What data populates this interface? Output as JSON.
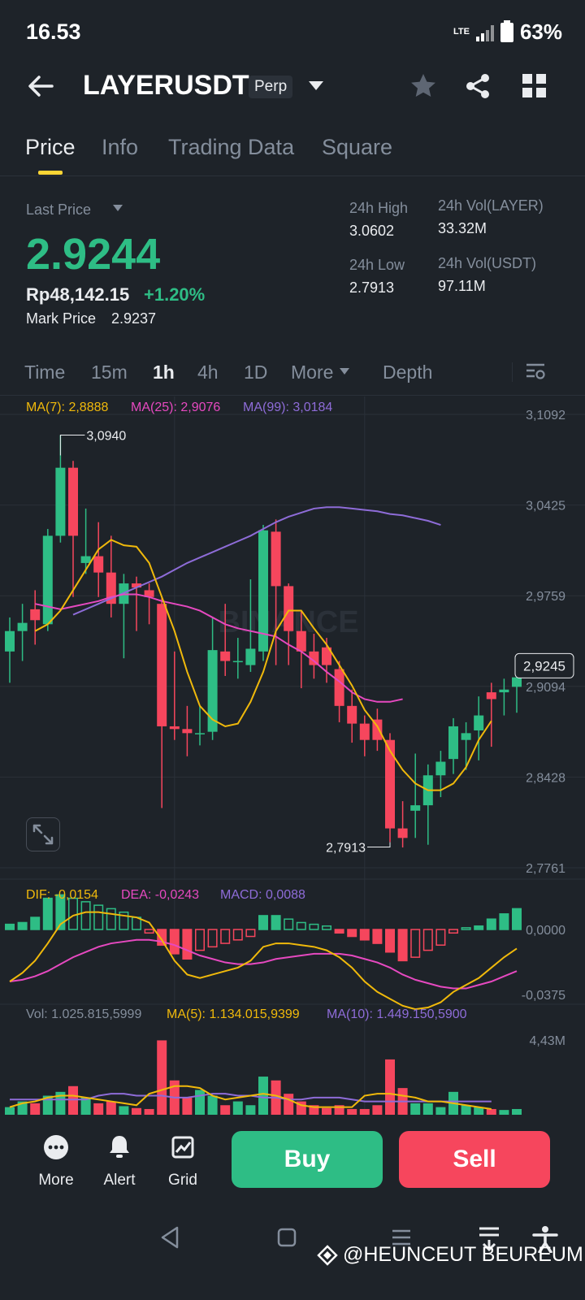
{
  "status_bar": {
    "time": "16.53",
    "network": "LTE",
    "battery": "63%"
  },
  "header": {
    "pair": "LAYERUSDT",
    "contract_badge": "Perp"
  },
  "tabs": [
    {
      "label": "Price",
      "active": true
    },
    {
      "label": "Info",
      "active": false
    },
    {
      "label": "Trading Data",
      "active": false
    },
    {
      "label": "Square",
      "active": false
    }
  ],
  "ticker": {
    "last_price_label": "Last Price",
    "last_price": "2.9244",
    "fiat_price": "Rp48,142.15",
    "change": "+1.20%",
    "mark_price_label": "Mark Price",
    "mark_price": "2.9237",
    "high_label": "24h High",
    "high": "3.0602",
    "low_label": "24h Low",
    "low": "2.7913",
    "vol_base_label": "24h Vol(LAYER)",
    "vol_base": "33.32M",
    "vol_quote_label": "24h Vol(USDT)",
    "vol_quote": "97.11M"
  },
  "intervals": [
    {
      "label": "Time",
      "active": false
    },
    {
      "label": "15m",
      "active": false
    },
    {
      "label": "1h",
      "active": true
    },
    {
      "label": "4h",
      "active": false
    },
    {
      "label": "1D",
      "active": false
    },
    {
      "label": "More",
      "active": false
    },
    {
      "label": "Depth",
      "active": false
    }
  ],
  "indicators": {
    "ma7": "MA(7): 2,8888",
    "ma25": "MA(25): 2,9076",
    "ma99": "MA(99): 3,0184",
    "dif": "DIF: -0,0154",
    "dea": "DEA: -0,0243",
    "macd": "MACD: 0,0088",
    "vol": "Vol: 1.025.815,5999",
    "vol_ma5": "MA(5): 1.134.015,9399",
    "vol_ma10": "MA(10): 1.449.150,5900"
  },
  "colors": {
    "up": "#2ebd85",
    "down": "#f6465d",
    "ma7": "#f0b90b",
    "ma25": "#e649c0",
    "ma99": "#8e6cd8",
    "accent": "#fcd535",
    "background": "#1e2329"
  },
  "chart_data": {
    "type": "candlestick",
    "watermark": "BINANCE",
    "price_axis": [
      "3,1092",
      "3,0425",
      "2,9759",
      "2,9094",
      "2,8428",
      "2,7761"
    ],
    "ylim": [
      2.7761,
      3.1092
    ],
    "current_price_tag": "2,9245",
    "current_price": 2.9245,
    "high_annotation": {
      "label": "3,0940",
      "value": 3.094
    },
    "low_annotation": {
      "label": "2,7913",
      "value": 2.7913
    },
    "candles": [
      [
        2.935,
        2.95,
        2.96,
        2.912
      ],
      [
        2.95,
        2.956,
        2.97,
        2.928
      ],
      [
        2.966,
        2.958,
        2.98,
        2.94
      ],
      [
        2.955,
        3.02,
        3.025,
        2.95
      ],
      [
        3.02,
        3.07,
        3.094,
        3.015
      ],
      [
        3.07,
        3.02,
        3.075,
        2.975
      ],
      [
        3.0,
        3.005,
        3.04,
        2.992
      ],
      [
        3.005,
        2.993,
        3.03,
        2.975
      ],
      [
        2.993,
        2.97,
        3.02,
        2.96
      ],
      [
        2.97,
        2.985,
        2.992,
        2.93
      ],
      [
        2.985,
        2.982,
        2.99,
        2.95
      ],
      [
        2.98,
        2.975,
        2.985,
        2.955
      ],
      [
        2.97,
        2.88,
        2.975,
        2.82
      ],
      [
        2.88,
        2.878,
        2.935,
        2.87
      ],
      [
        2.878,
        2.875,
        2.895,
        2.858
      ],
      [
        2.875,
        2.875,
        2.895,
        2.866
      ],
      [
        2.876,
        2.936,
        2.96,
        2.87
      ],
      [
        2.935,
        2.928,
        2.97,
        2.917
      ],
      [
        2.928,
        2.928,
        2.945,
        2.915
      ],
      [
        2.925,
        2.937,
        2.988,
        2.92
      ],
      [
        2.935,
        3.024,
        3.028,
        2.928
      ],
      [
        3.023,
        2.983,
        3.032,
        2.925
      ],
      [
        2.983,
        2.95,
        2.985,
        2.925
      ],
      [
        2.95,
        2.935,
        2.965,
        2.908
      ],
      [
        2.935,
        2.925,
        2.948,
        2.915
      ],
      [
        2.938,
        2.925,
        2.945,
        2.912
      ],
      [
        2.922,
        2.895,
        2.928,
        2.883
      ],
      [
        2.895,
        2.882,
        2.907,
        2.868
      ],
      [
        2.882,
        2.87,
        2.888,
        2.858
      ],
      [
        2.885,
        2.87,
        2.893,
        2.862
      ],
      [
        2.87,
        2.805,
        2.875,
        2.795
      ],
      [
        2.805,
        2.798,
        2.825,
        2.791
      ],
      [
        2.818,
        2.822,
        2.86,
        2.798
      ],
      [
        2.822,
        2.844,
        2.852,
        2.793
      ],
      [
        2.844,
        2.854,
        2.862,
        2.828
      ],
      [
        2.856,
        2.88,
        2.886,
        2.845
      ],
      [
        2.87,
        2.875,
        2.883,
        2.848
      ],
      [
        2.877,
        2.888,
        2.902,
        2.855
      ],
      [
        2.905,
        2.9,
        2.912,
        2.865
      ],
      [
        2.905,
        2.907,
        2.915,
        2.888
      ],
      [
        2.909,
        2.916,
        2.93,
        2.89
      ]
    ],
    "ma7_series": [
      2.95,
      2.955,
      2.965,
      2.98,
      2.995,
      3.01,
      3.017,
      3.013,
      3.012,
      3.0,
      2.975,
      2.95,
      2.92,
      2.895,
      2.885,
      2.88,
      2.882,
      2.898,
      2.92,
      2.95,
      2.965,
      2.965,
      2.952,
      2.94,
      2.925,
      2.91,
      2.892,
      2.88,
      2.862,
      2.848,
      2.838,
      2.833,
      2.833,
      2.838,
      2.85,
      2.87,
      2.884
    ],
    "ma7_start": 2,
    "ma25_series": [
      2.97,
      2.968,
      2.966,
      2.968,
      2.97,
      2.972,
      2.975,
      2.977,
      2.977,
      2.975,
      2.972,
      2.97,
      2.968,
      2.965,
      2.96,
      2.955,
      2.952,
      2.95,
      2.948,
      2.946,
      2.94,
      2.935,
      2.928,
      2.92,
      2.913,
      2.905,
      2.9,
      2.898,
      2.898,
      2.9
    ],
    "ma25_start": 2,
    "ma99_series": [
      2.962,
      2.966,
      2.97,
      2.974,
      2.978,
      2.982,
      2.986,
      2.99,
      2.995,
      3.0,
      3.004,
      3.008,
      3.012,
      3.016,
      3.02,
      3.025,
      3.03,
      3.034,
      3.037,
      3.04,
      3.041,
      3.041,
      3.04,
      3.039,
      3.038,
      3.036,
      3.035,
      3.033,
      3.031,
      3.028
    ],
    "ma99_start": 5,
    "macd_axis": [
      "0,0000",
      "-0,0375"
    ],
    "macd_hist": [
      0.003,
      0.004,
      0.007,
      0.018,
      0.02,
      0.018,
      0.016,
      0.014,
      0.012,
      0.01,
      0.007,
      -0.002,
      -0.009,
      -0.014,
      -0.017,
      -0.012,
      -0.01,
      -0.008,
      -0.006,
      -0.004,
      0.008,
      0.008,
      0.006,
      0.004,
      0.003,
      0.002,
      -0.002,
      -0.004,
      -0.006,
      -0.008,
      -0.013,
      -0.018,
      -0.016,
      -0.012,
      -0.009,
      -0.002,
      0.001,
      0.002,
      0.006,
      0.009,
      0.012
    ],
    "dif_series": [
      -0.03,
      -0.025,
      -0.018,
      -0.008,
      0.003,
      0.008,
      0.01,
      0.01,
      0.009,
      0.008,
      0.007,
      0.004,
      -0.006,
      -0.018,
      -0.026,
      -0.028,
      -0.026,
      -0.024,
      -0.022,
      -0.018,
      -0.01,
      -0.008,
      -0.008,
      -0.009,
      -0.01,
      -0.012,
      -0.016,
      -0.022,
      -0.03,
      -0.036,
      -0.04,
      -0.044,
      -0.046,
      -0.045,
      -0.042,
      -0.036,
      -0.032,
      -0.028,
      -0.022,
      -0.016,
      -0.011
    ],
    "dea_series": [
      -0.03,
      -0.029,
      -0.027,
      -0.024,
      -0.02,
      -0.016,
      -0.013,
      -0.01,
      -0.008,
      -0.007,
      -0.006,
      -0.006,
      -0.007,
      -0.009,
      -0.012,
      -0.015,
      -0.017,
      -0.019,
      -0.02,
      -0.02,
      -0.019,
      -0.017,
      -0.016,
      -0.015,
      -0.014,
      -0.014,
      -0.014,
      -0.015,
      -0.017,
      -0.019,
      -0.022,
      -0.026,
      -0.029,
      -0.031,
      -0.033,
      -0.034,
      -0.034,
      -0.032,
      -0.03,
      -0.027,
      -0.024
    ],
    "vol_axis": "4,43M",
    "vol_max": 4430000,
    "volumes": [
      400000,
      700000,
      600000,
      1000000,
      1200000,
      1500000,
      900000,
      600000,
      700000,
      450000,
      350000,
      300000,
      3900000,
      1800000,
      900000,
      1300000,
      1000000,
      500000,
      700000,
      500000,
      2000000,
      1800000,
      1100000,
      700000,
      500000,
      350000,
      500000,
      300000,
      300000,
      500000,
      2900000,
      1400000,
      600000,
      600000,
      400000,
      1200000,
      500000,
      400000,
      300000,
      250000,
      300000
    ],
    "vol_ma5": [
      400000,
      600000,
      700000,
      900000,
      1000000,
      1000000,
      900000,
      800000,
      700000,
      600000,
      500000,
      1100000,
      1300000,
      1500000,
      1500000,
      1400000,
      1000000,
      800000,
      900000,
      1000000,
      1100000,
      1000000,
      800000,
      500000,
      400000,
      400000,
      400000,
      400000,
      1000000,
      1100000,
      1100000,
      1000000,
      900000,
      700000,
      700000,
      600000,
      500000,
      400000,
      300000
    ],
    "vol_ma10": [
      800000,
      800000,
      800000,
      800000,
      800000,
      800000,
      800000,
      1000000,
      1100000,
      1100000,
      1000000,
      1000000,
      1000000,
      900000,
      900000,
      1000000,
      1100000,
      1100000,
      1000000,
      1000000,
      900000,
      900000,
      800000,
      800000,
      900000,
      900000,
      900000,
      800000,
      700000,
      700000,
      700000,
      700000,
      700000,
      700000,
      700000,
      700000,
      700000,
      700000,
      700000
    ],
    "x_grid_at_candles": [
      13,
      28
    ]
  },
  "bottom_bar": {
    "more": "More",
    "alert": "Alert",
    "grid": "Grid",
    "buy": "Buy",
    "sell": "Sell"
  },
  "watermark": "@HEUNCEUT BEUREUM"
}
